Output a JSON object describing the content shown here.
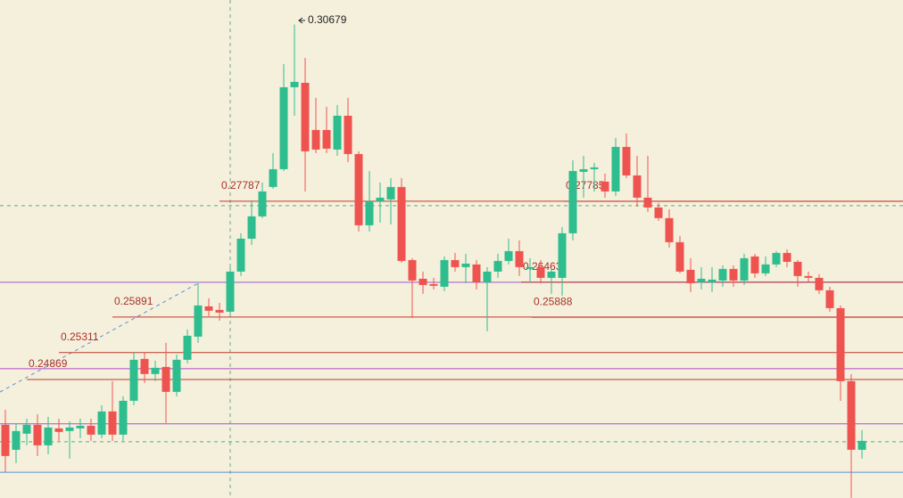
{
  "chart_data": {
    "type": "candlestick",
    "ylim": [
      0.2293,
      0.3108
    ],
    "up_color": "#2dbd8e",
    "down_color": "#ef5350",
    "open": [
      0.24128,
      0.23719,
      0.23982,
      0.24128,
      0.23792,
      0.24069,
      0.24026,
      0.24069,
      0.24113,
      0.23967,
      0.24346,
      0.23967,
      0.24521,
      0.25206,
      0.24959,
      0.25075,
      0.24667,
      0.25192,
      0.25571,
      0.26066,
      0.26008,
      0.25979,
      0.26635,
      0.27174,
      0.27539,
      0.2802,
      0.28311,
      0.29652,
      0.29725,
      0.28953,
      0.28953,
      0.28632,
      0.29186,
      0.28559,
      0.27393,
      0.27787,
      0.27816,
      0.2802,
      0.26824,
      0.26518,
      0.26431,
      0.26387,
      0.26824,
      0.26708,
      0.26752,
      0.2646,
      0.26635,
      0.2681,
      0.2697,
      0.26679,
      0.26708,
      0.26533,
      0.26533,
      0.27262,
      0.28268,
      0.28311,
      0.28107,
      0.27947,
      0.28676,
      0.28209,
      0.27845,
      0.27684,
      0.2751,
      0.27116,
      0.26664,
      0.2646,
      0.2646,
      0.26489,
      0.26679,
      0.26489,
      0.26883,
      0.26606,
      0.26752,
      0.26941,
      0.26795,
      0.26562,
      0.26533,
      0.26329,
      0.26037,
      0.24842,
      0.23719
    ],
    "high": [
      0.24375,
      0.24157,
      0.2423,
      0.24303,
      0.24259,
      0.2423,
      0.24186,
      0.2423,
      0.2423,
      0.24448,
      0.24842,
      0.24594,
      0.25323,
      0.25323,
      0.25177,
      0.25469,
      0.25279,
      0.25687,
      0.26445,
      0.26198,
      0.26125,
      0.26708,
      0.27262,
      0.27801,
      0.28093,
      0.28574,
      0.30031,
      0.30679,
      0.30133,
      0.29478,
      0.29332,
      0.29361,
      0.29478,
      0.28603,
      0.28282,
      0.28093,
      0.28166,
      0.28166,
      0.26854,
      0.26635,
      0.26533,
      0.26883,
      0.26941,
      0.26926,
      0.26824,
      0.26708,
      0.26926,
      0.27174,
      0.27145,
      0.26854,
      0.26824,
      0.26708,
      0.27364,
      0.28457,
      0.2853,
      0.28413,
      0.28238,
      0.28822,
      0.28894,
      0.2853,
      0.2853,
      0.27757,
      0.27655,
      0.27218,
      0.26854,
      0.26708,
      0.26708,
      0.26737,
      0.26737,
      0.26926,
      0.26926,
      0.26883,
      0.2697,
      0.26999,
      0.26824,
      0.26635,
      0.26591,
      0.26387,
      0.26081,
      0.24959,
      0.2404
    ],
    "low": [
      0.23355,
      0.23501,
      0.23792,
      0.23617,
      0.23647,
      0.23865,
      0.23574,
      0.23909,
      0.23865,
      0.23909,
      0.23865,
      0.23865,
      0.24448,
      0.24813,
      0.24842,
      0.24157,
      0.24594,
      0.25133,
      0.25469,
      0.25906,
      0.25833,
      0.25906,
      0.26562,
      0.27072,
      0.2751,
      0.27991,
      0.28282,
      0.29186,
      0.27947,
      0.28574,
      0.28574,
      0.2853,
      0.28428,
      0.27291,
      0.27291,
      0.27437,
      0.27408,
      0.26781,
      0.25877,
      0.26271,
      0.26343,
      0.26314,
      0.26635,
      0.26445,
      0.26343,
      0.25658,
      0.26533,
      0.26752,
      0.26562,
      0.2646,
      0.26445,
      0.26271,
      0.26241,
      0.27145,
      0.27845,
      0.27947,
      0.27845,
      0.27874,
      0.28166,
      0.27699,
      0.27612,
      0.27466,
      0.27029,
      0.26606,
      0.263,
      0.26343,
      0.263,
      0.26387,
      0.26387,
      0.26416,
      0.26533,
      0.26562,
      0.26708,
      0.26708,
      0.26387,
      0.26475,
      0.26271,
      0.25979,
      0.24521,
      0.22932,
      0.23574
    ],
    "close": [
      0.23617,
      0.24026,
      0.24128,
      0.23792,
      0.24084,
      0.24011,
      0.24084,
      0.24113,
      0.23967,
      0.24346,
      0.23967,
      0.24521,
      0.25192,
      0.24959,
      0.25061,
      0.24667,
      0.25192,
      0.25585,
      0.26081,
      0.25994,
      0.25964,
      0.26635,
      0.27174,
      0.27539,
      0.27947,
      0.28311,
      0.29652,
      0.2974,
      0.28603,
      0.28632,
      0.28647,
      0.29186,
      0.28559,
      0.27393,
      0.27787,
      0.27845,
      0.2802,
      0.2681,
      0.26489,
      0.26416,
      0.26402,
      0.26824,
      0.26708,
      0.26766,
      0.2646,
      0.26635,
      0.2681,
      0.2697,
      0.26708,
      0.26708,
      0.26533,
      0.26635,
      0.27262,
      0.28282,
      0.28311,
      0.2834,
      0.27947,
      0.28676,
      0.28209,
      0.27845,
      0.27684,
      0.2751,
      0.27116,
      0.26635,
      0.26445,
      0.26518,
      0.26504,
      0.26679,
      0.26489,
      0.26854,
      0.26606,
      0.26752,
      0.26941,
      0.26795,
      0.26562,
      0.26533,
      0.26329,
      0.26037,
      0.24842,
      0.23719,
      0.23865
    ],
    "levels": [
      {
        "value": 0.27787,
        "label": "0.27787",
        "color": "#c0392b"
      },
      {
        "value": 0.27785,
        "label": "0.27785",
        "color": "#c0392b"
      },
      {
        "value": 0.26463,
        "label": "0.26463",
        "color": "#c0392b"
      },
      {
        "value": 0.25888,
        "label": "0.25888",
        "color": "#c0392b"
      },
      {
        "value": 0.25891,
        "label": "0.25891",
        "color": "#c0392b"
      },
      {
        "value": 0.25311,
        "label": "0.25311",
        "color": "#c0392b"
      },
      {
        "value": 0.24869,
        "label": "0.24869",
        "color": "#c0392b"
      }
    ],
    "lines": [
      {
        "value": 0.27714,
        "color": "#5fa88a",
        "style": "dashed"
      },
      {
        "value": 0.2646,
        "color": "#9b59d0",
        "style": "solid"
      },
      {
        "value": 0.25046,
        "color": "#b048c8",
        "style": "solid"
      },
      {
        "value": 0.24143,
        "color": "#9b59d0",
        "style": "solid"
      },
      {
        "value": 0.23851,
        "color": "#4caf7d",
        "style": "dashed"
      },
      {
        "value": 0.23351,
        "color": "#5b8fd8",
        "style": "solid"
      }
    ],
    "annotation": "0.30679"
  }
}
